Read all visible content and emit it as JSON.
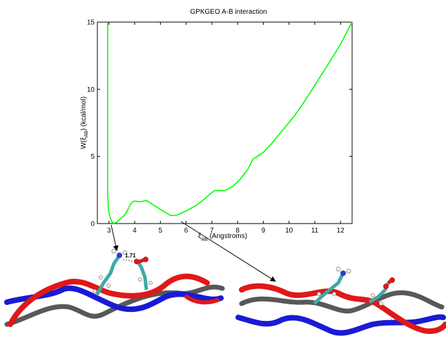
{
  "chart_data": {
    "type": "line",
    "title": "GPKGEO A-B interaction",
    "ylabel_main": "W(ξ",
    "ylabel_sub": "AB",
    "ylabel_tail": ") (kcal/mol)",
    "xlabel_main": "ξ",
    "xlabel_sub": "AB",
    "xlabel_tail": " (Angstroms)",
    "xlim": [
      2.55,
      12.45
    ],
    "ylim": [
      0,
      15
    ],
    "x_ticks": [
      "3",
      "4",
      "5",
      "6",
      "7",
      "8",
      "9",
      "10",
      "11",
      "12"
    ],
    "y_ticks": [
      "0",
      "5",
      "10",
      "15"
    ],
    "grid": false,
    "series": [
      {
        "color": "#00ff00",
        "x": [
          2.95,
          2.95,
          2.97,
          3.0,
          3.05,
          3.1,
          3.15,
          3.2,
          3.3,
          3.4,
          3.5,
          3.6,
          3.7,
          3.8,
          3.9,
          4.0,
          4.1,
          4.2,
          4.3,
          4.4,
          4.5,
          4.6,
          4.7,
          4.8,
          4.9,
          5.0,
          5.2,
          5.4,
          5.6,
          5.8,
          6.0,
          6.3,
          6.6,
          6.9,
          7.1,
          7.3,
          7.5,
          7.8,
          8.1,
          8.4,
          8.6,
          8.8,
          9.0,
          9.3,
          9.6,
          9.9,
          10.2,
          10.5,
          10.8,
          11.1,
          11.4,
          11.7,
          12.0,
          12.2,
          12.45
        ],
        "y": [
          15.0,
          2.5,
          1.3,
          0.8,
          0.45,
          0.2,
          0.05,
          0.02,
          0.1,
          0.3,
          0.45,
          0.6,
          0.9,
          1.3,
          1.6,
          1.68,
          1.65,
          1.62,
          1.65,
          1.7,
          1.68,
          1.55,
          1.42,
          1.3,
          1.18,
          1.05,
          0.82,
          0.6,
          0.6,
          0.75,
          0.95,
          1.25,
          1.65,
          2.15,
          2.45,
          2.45,
          2.45,
          2.75,
          3.3,
          4.05,
          4.8,
          5.05,
          5.3,
          5.9,
          6.6,
          7.3,
          8.0,
          8.8,
          9.7,
          10.6,
          11.5,
          12.4,
          13.35,
          14.1,
          15.0
        ]
      }
    ]
  },
  "annotations": {
    "distance_label": "1.71"
  },
  "colors": {
    "strand_red": "#e01818",
    "strand_blue": "#1a1ad4",
    "strand_gray": "#585858",
    "carbon_teal": "#3fa8a8",
    "nitrogen_blue": "#2a3fd0",
    "oxygen_red": "#d21a1a",
    "hydrogen_white": "#f2f2f2"
  }
}
